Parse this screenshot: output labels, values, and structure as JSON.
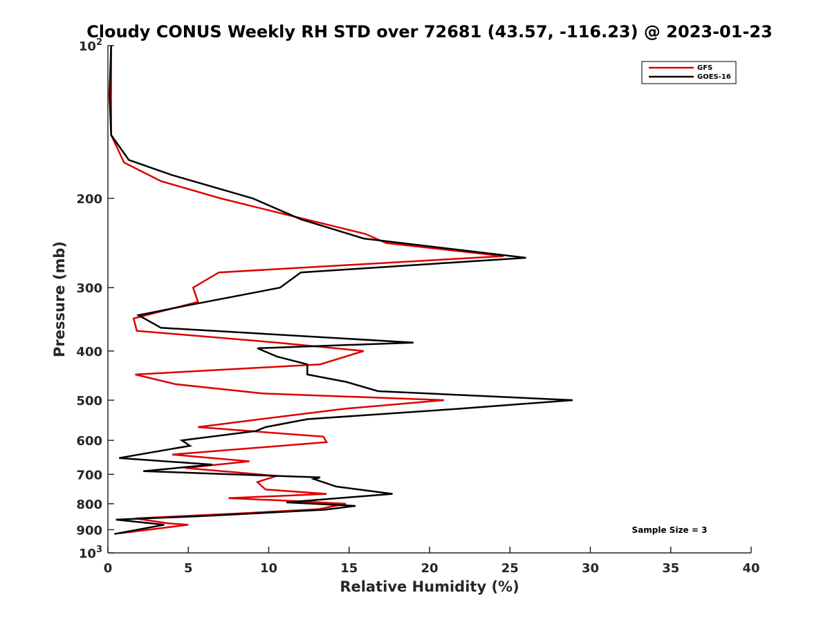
{
  "chart_data": {
    "type": "line",
    "title": "Cloudy CONUS Weekly RH STD over 72681 (43.57, -116.23) @ 2023-01-23",
    "xlabel": "Relative Humidity (%)",
    "ylabel": "Pressure (mb)",
    "xlim": [
      0,
      40
    ],
    "ylim": [
      100,
      1000
    ],
    "y_scale": "log",
    "y_reversed": true,
    "grid": false,
    "legend_position": "top-right",
    "x_ticks": [
      "0",
      "5",
      "10",
      "15",
      "20",
      "25",
      "30",
      "35",
      "40"
    ],
    "y_ticks": [
      {
        "value": 100,
        "base": "10",
        "exp": "2"
      },
      {
        "value": 200,
        "label": "200"
      },
      {
        "value": 300,
        "label": "300"
      },
      {
        "value": 400,
        "label": "400"
      },
      {
        "value": 500,
        "label": "500"
      },
      {
        "value": 600,
        "label": "600"
      },
      {
        "value": 700,
        "label": "700"
      },
      {
        "value": 800,
        "label": "800"
      },
      {
        "value": 900,
        "label": "900"
      },
      {
        "value": 1000,
        "base": "10",
        "exp": "3"
      }
    ],
    "series": [
      {
        "name": "GFS",
        "color": "#dd0000",
        "points": [
          [
            0.2,
            100
          ],
          [
            0.2,
            125
          ],
          [
            0.2,
            150
          ],
          [
            1.0,
            170
          ],
          [
            3.3,
            185
          ],
          [
            7.0,
            200
          ],
          [
            11.0,
            215
          ],
          [
            16.0,
            235
          ],
          [
            17.3,
            245
          ],
          [
            24.6,
            260
          ],
          [
            6.9,
            280
          ],
          [
            5.3,
            300
          ],
          [
            5.6,
            320
          ],
          [
            1.6,
            345
          ],
          [
            1.8,
            365
          ],
          [
            10.5,
            385
          ],
          [
            15.9,
            400
          ],
          [
            13.2,
            425
          ],
          [
            1.7,
            445
          ],
          [
            4.2,
            465
          ],
          [
            9.6,
            485
          ],
          [
            20.9,
            500
          ],
          [
            14.7,
            520
          ],
          [
            9.5,
            545
          ],
          [
            5.6,
            565
          ],
          [
            13.4,
            590
          ],
          [
            13.6,
            605
          ],
          [
            4.0,
            640
          ],
          [
            8.8,
            660
          ],
          [
            4.8,
            680
          ],
          [
            10.5,
            705
          ],
          [
            9.3,
            725
          ],
          [
            9.8,
            750
          ],
          [
            13.6,
            765
          ],
          [
            7.5,
            780
          ],
          [
            11.5,
            790
          ],
          [
            14.8,
            800
          ],
          [
            13.1,
            820
          ],
          [
            8.5,
            835
          ],
          [
            1.7,
            855
          ],
          [
            3.8,
            875
          ],
          [
            5.0,
            880
          ],
          [
            0.7,
            915
          ]
        ]
      },
      {
        "name": "GOES-16",
        "color": "#000000",
        "points": [
          [
            0.2,
            100
          ],
          [
            0.1,
            125
          ],
          [
            0.2,
            150
          ],
          [
            1.3,
            168
          ],
          [
            4.0,
            180
          ],
          [
            9.0,
            200
          ],
          [
            12.0,
            220
          ],
          [
            15.9,
            240
          ],
          [
            26.0,
            262
          ],
          [
            12.0,
            280
          ],
          [
            10.7,
            300
          ],
          [
            5.0,
            325
          ],
          [
            1.9,
            340
          ],
          [
            3.3,
            360
          ],
          [
            19.0,
            385
          ],
          [
            9.3,
            395
          ],
          [
            10.5,
            410
          ],
          [
            12.4,
            425
          ],
          [
            12.4,
            445
          ],
          [
            14.8,
            460
          ],
          [
            16.8,
            480
          ],
          [
            28.9,
            500
          ],
          [
            21.8,
            520
          ],
          [
            12.4,
            545
          ],
          [
            9.8,
            565
          ],
          [
            9.2,
            575
          ],
          [
            4.6,
            600
          ],
          [
            5.1,
            615
          ],
          [
            0.7,
            650
          ],
          [
            6.5,
            670
          ],
          [
            2.2,
            690
          ],
          [
            10.5,
            705
          ],
          [
            13.2,
            710
          ],
          [
            12.8,
            715
          ],
          [
            14.2,
            740
          ],
          [
            17.7,
            765
          ],
          [
            11.1,
            795
          ],
          [
            15.4,
            808
          ],
          [
            13.5,
            822
          ],
          [
            6.3,
            845
          ],
          [
            0.5,
            860
          ],
          [
            3.5,
            880
          ],
          [
            0.4,
            918
          ]
        ]
      }
    ],
    "annotation": "Sample Size = 3"
  }
}
